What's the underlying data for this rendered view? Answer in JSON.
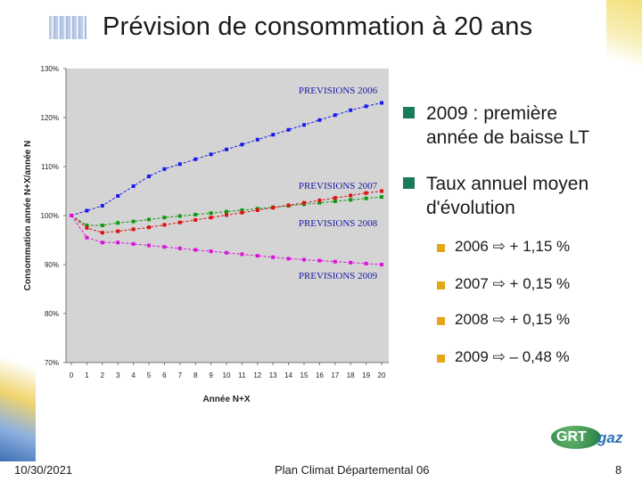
{
  "slide": {
    "title": "Prévision de consommation à 20 ans",
    "footer_date": "10/30/2021",
    "footer_center": "Plan Climat Départemental 06",
    "page_number": "8"
  },
  "bullets": {
    "main": [
      {
        "text_line1": "2009 : première",
        "text_line2": "année de baisse LT"
      },
      {
        "text_line1": "Taux annuel moyen",
        "text_line2": "d'évolution"
      }
    ],
    "rates": [
      {
        "year": "2006",
        "arrow": "⇨",
        "value": "+ 1,15 %"
      },
      {
        "year": "2007",
        "arrow": "⇨",
        "value": "+ 0,15 %"
      },
      {
        "year": "2008",
        "arrow": "⇨",
        "value": "+ 0,15 %"
      },
      {
        "year": "2009",
        "arrow": "⇨",
        "value": "– 0,48 %"
      }
    ],
    "colors": {
      "main_square": "#1b7a5a",
      "sub_square": "#e5a516"
    }
  },
  "logo": {
    "left": "GRT",
    "right": "gaz"
  },
  "chart_data": {
    "type": "line",
    "xlabel": "Année N+X",
    "ylabel": "Consommation année N+X/année N",
    "ylim": [
      70,
      130
    ],
    "yticks": [
      70,
      80,
      90,
      100,
      110,
      120,
      130
    ],
    "ytick_labels": [
      "70%",
      "80%",
      "90%",
      "100%",
      "110%",
      "120%",
      "130%"
    ],
    "x": [
      0,
      1,
      2,
      3,
      4,
      5,
      6,
      7,
      8,
      9,
      10,
      11,
      12,
      13,
      14,
      15,
      16,
      17,
      18,
      19,
      20
    ],
    "plot_background": "#d4d4d4",
    "series": [
      {
        "name": "PREVISIONS 2006",
        "color": "#1a1aee",
        "values": [
          100,
          101,
          102,
          104,
          106,
          108,
          109.5,
          110.5,
          111.5,
          112.5,
          113.5,
          114.5,
          115.5,
          116.5,
          117.5,
          118.5,
          119.5,
          120.5,
          121.5,
          122.3,
          123
        ]
      },
      {
        "name": "PREVISIONS 2007",
        "color": "#119911",
        "values": [
          100,
          98,
          98,
          98.5,
          98.8,
          99.2,
          99.6,
          99.9,
          100.2,
          100.5,
          100.8,
          101.1,
          101.4,
          101.7,
          102,
          102.3,
          102.6,
          102.9,
          103.2,
          103.5,
          103.8
        ]
      },
      {
        "name": "PREVISIONS 2008",
        "color": "#dd1111",
        "values": [
          100,
          97.5,
          96.5,
          96.8,
          97.2,
          97.6,
          98.1,
          98.6,
          99.1,
          99.6,
          100.1,
          100.6,
          101.1,
          101.6,
          102.1,
          102.6,
          103.1,
          103.6,
          104.1,
          104.6,
          105
        ]
      },
      {
        "name": "PREVISIONS 2009",
        "color": "#dd11dd",
        "values": [
          100,
          95.5,
          94.5,
          94.5,
          94.2,
          93.9,
          93.6,
          93.3,
          93,
          92.7,
          92.4,
          92.1,
          91.8,
          91.5,
          91.2,
          91,
          90.8,
          90.6,
          90.4,
          90.2,
          90
        ]
      }
    ],
    "series_labels": [
      "PREVISIONS 2006",
      "PREVISIONS 2007",
      "PREVISIONS 2008",
      "PREVISIONS 2009"
    ]
  }
}
